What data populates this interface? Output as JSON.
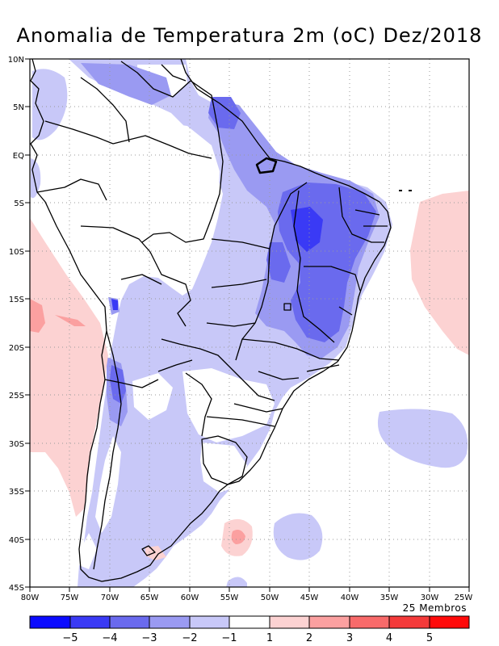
{
  "title": "Anomalia de Temperatura 2m (oC) Dez/2018",
  "lat_labels": [
    "10N",
    "5N",
    "EQ",
    "5S",
    "10S",
    "15S",
    "20S",
    "25S",
    "30S",
    "35S",
    "40S",
    "45S"
  ],
  "lon_labels": [
    "80W",
    "75W",
    "70W",
    "65W",
    "60W",
    "55W",
    "50W",
    "45W",
    "40W",
    "35W",
    "30W",
    "25W"
  ],
  "members_note": "25 Membros",
  "colorbar": {
    "labels": [
      "−5",
      "−4",
      "−3",
      "−2",
      "−1",
      "1",
      "2",
      "3",
      "4",
      "5"
    ],
    "colors": [
      "#0b0bff",
      "#3a3af5",
      "#6a6aee",
      "#9a9af2",
      "#c8c8f8",
      "#ffffff",
      "#fcd2d2",
      "#fba0a0",
      "#f86a6a",
      "#f43a3a",
      "#ff0a0a"
    ]
  },
  "palette": {
    "blue1": "#c8c8f8",
    "blue2": "#9a9af2",
    "blue3": "#6a6aee",
    "blue4": "#3a3af5",
    "red1": "#fcd2d2",
    "red2": "#fba0a0"
  }
}
